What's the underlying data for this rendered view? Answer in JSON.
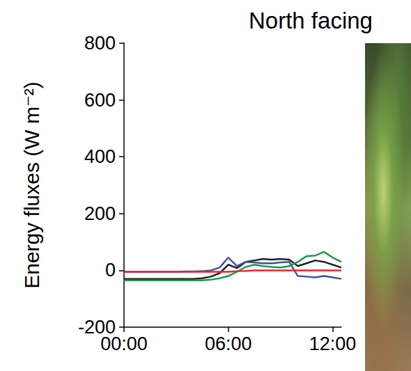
{
  "chart_data": {
    "type": "line",
    "title": "North facing",
    "y_label": "Energy fluxes (W m⁻²)",
    "x": [
      0,
      0.5,
      1,
      1.5,
      2,
      2.5,
      3,
      3.5,
      4,
      4.5,
      5,
      5.5,
      6,
      6.5,
      7,
      7.5,
      8,
      8.5,
      9,
      9.5,
      10,
      10.5,
      11,
      11.5,
      12,
      12.5
    ],
    "series": [
      {
        "color": "#231f20",
        "values": [
          -30,
          -30,
          -30,
          -30,
          -30,
          -30,
          -30,
          -30,
          -30,
          -28,
          -22,
          -10,
          20,
          8,
          30,
          35,
          40,
          38,
          40,
          38,
          15,
          25,
          35,
          30,
          20,
          10
        ]
      },
      {
        "color": "#3a53a4",
        "values": [
          -5,
          -5,
          -5,
          -5,
          -5,
          -5,
          -5,
          -4,
          -4,
          -3,
          0,
          10,
          45,
          15,
          30,
          28,
          25,
          25,
          28,
          30,
          -20,
          -22,
          -25,
          -20,
          -25,
          -30
        ]
      },
      {
        "color": "#1a9a4a",
        "values": [
          -35,
          -35,
          -35,
          -35,
          -35,
          -35,
          -35,
          -35,
          -35,
          -35,
          -33,
          -28,
          -20,
          -5,
          12,
          20,
          15,
          12,
          10,
          15,
          30,
          50,
          52,
          65,
          45,
          30
        ]
      },
      {
        "color": "#e8262a",
        "values": [
          -5,
          -5,
          -5,
          -5,
          -5,
          -5,
          -5,
          -5,
          -5,
          -5,
          -5,
          -5,
          -5,
          -3,
          -2,
          0,
          0,
          0,
          0,
          0,
          0,
          0,
          0,
          0,
          0,
          0
        ]
      }
    ],
    "xlim": [
      0,
      12.5
    ],
    "xticks": [
      {
        "value": 0,
        "label": "00:00"
      },
      {
        "value": 6,
        "label": "06:00"
      },
      {
        "value": 12,
        "label": "12:00"
      }
    ],
    "ylim": [
      -200,
      800
    ],
    "yticks": [
      -200,
      0,
      200,
      400,
      600,
      800
    ],
    "grid": false
  }
}
